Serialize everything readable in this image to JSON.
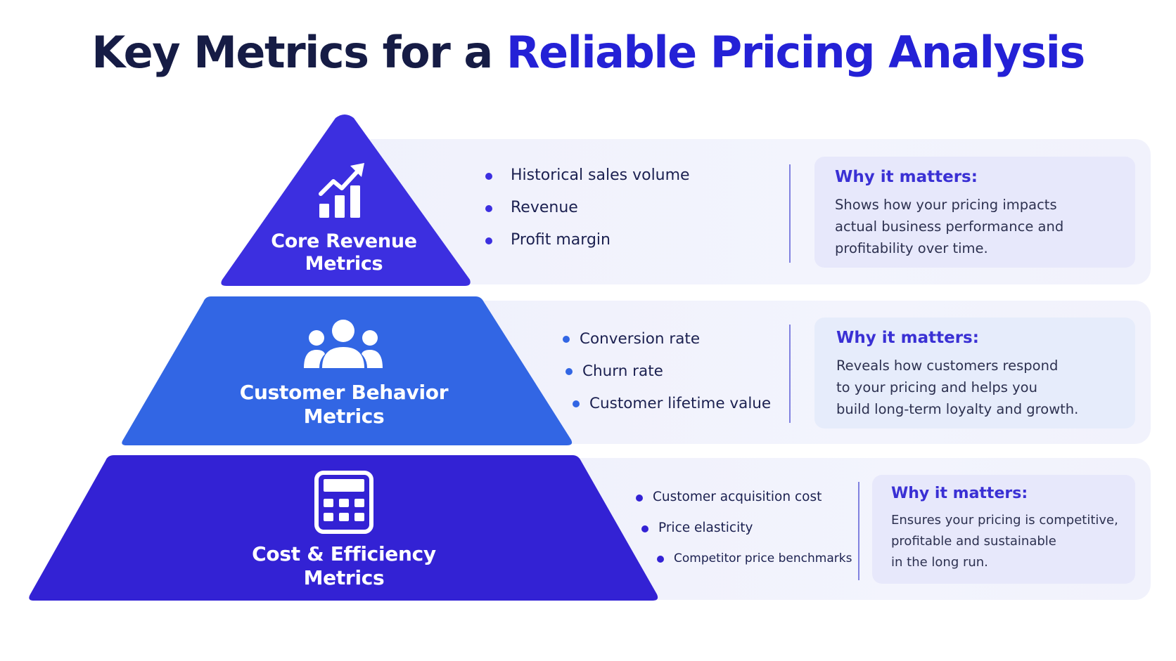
{
  "title": {
    "prefix": "Key Metrics for a",
    "accent": "Reliable Pricing Analysis"
  },
  "colors": {
    "tier1": "#3c2fe0",
    "tier2": "#3266e4",
    "tier3": "#3322d4",
    "accent_text": "#2421d6",
    "card_bg": "#f1f2fc"
  },
  "tiers": [
    {
      "icon": "growth-chart-icon",
      "label_line1": "Core Revenue",
      "label_line2": "Metrics",
      "bullets": [
        "Historical sales volume",
        "Revenue",
        "Profit margin"
      ],
      "why_title": "Why it matters:",
      "why_text": "Shows how your pricing impacts\nactual business performance and\nprofitability over time."
    },
    {
      "icon": "users-group-icon",
      "label_line1": "Customer Behavior",
      "label_line2": "Metrics",
      "bullets": [
        "Conversion rate",
        "Churn rate",
        "Customer lifetime value"
      ],
      "why_title": "Why it matters:",
      "why_text": "Reveals how customers respond\nto your pricing and helps you\nbuild long-term loyalty and growth."
    },
    {
      "icon": "calculator-icon",
      "label_line1": "Cost & Efficiency",
      "label_line2": "Metrics",
      "bullets": [
        "Customer acquisition cost",
        "Price elasticity",
        "Competitor price benchmarks"
      ],
      "why_title": "Why it matters:",
      "why_text": "Ensures your pricing is competitive,\nprofitable and sustainable\nin the long run."
    }
  ]
}
